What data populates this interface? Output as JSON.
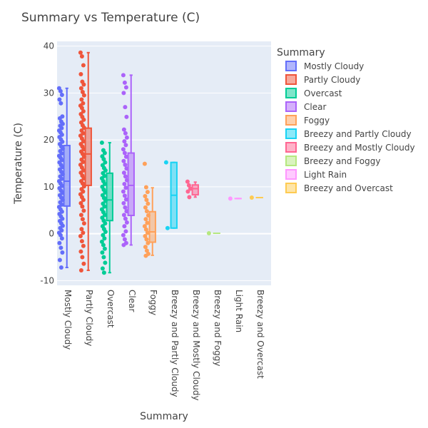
{
  "chart_data": {
    "type": "box",
    "title": "Summary vs Temperature (C)",
    "xlabel": "Summary",
    "ylabel": "Temperature (C)",
    "ylim": [
      -11,
      41
    ],
    "yticks": [
      -10,
      0,
      10,
      20,
      30,
      40
    ],
    "grid": true,
    "legend": {
      "title": "Summary",
      "position": "right"
    },
    "plot_bg": "#E5ECF6",
    "series": [
      {
        "name": "Mostly Cloudy",
        "color": "#636EFA",
        "min": -7.2,
        "q1": 5.9,
        "median": 11.2,
        "q3": 18.8,
        "max": 31.0,
        "points": [
          31.0,
          30.4,
          29.6,
          28.6,
          27.8,
          25.0,
          24.6,
          23.9,
          23.4,
          23.0,
          22.5,
          22.0,
          21.6,
          21.1,
          20.6,
          20.1,
          19.6,
          19.1,
          18.6,
          18.1,
          17.6,
          17.1,
          16.6,
          16.2,
          15.7,
          15.2,
          14.7,
          14.2,
          13.7,
          13.2,
          12.7,
          12.2,
          11.7,
          11.2,
          10.7,
          10.2,
          9.7,
          9.2,
          8.7,
          8.2,
          7.7,
          7.2,
          6.7,
          6.2,
          5.7,
          5.2,
          4.7,
          4.2,
          3.7,
          3.2,
          2.7,
          2.2,
          1.7,
          1.2,
          0.7,
          0.2,
          -0.3,
          -1.0,
          -2.0,
          -3.0,
          -4.0,
          -5.6,
          -7.2
        ]
      },
      {
        "name": "Partly Cloudy",
        "color": "#EF553B",
        "min": -7.8,
        "q1": 10.3,
        "median": 17.0,
        "q3": 22.5,
        "max": 38.6,
        "points": [
          38.6,
          37.8,
          35.9,
          34.0,
          32.4,
          31.8,
          31.0,
          30.2,
          29.5,
          28.6,
          27.8,
          27.3,
          26.8,
          26.1,
          25.5,
          24.9,
          24.3,
          23.7,
          23.1,
          22.6,
          22.0,
          21.4,
          20.9,
          20.3,
          19.7,
          19.1,
          18.6,
          18.0,
          17.5,
          17.0,
          16.4,
          15.8,
          15.3,
          14.7,
          14.1,
          13.5,
          13.0,
          12.4,
          11.8,
          11.2,
          10.7,
          10.1,
          9.5,
          9.0,
          8.4,
          7.8,
          7.2,
          6.5,
          5.8,
          4.9,
          4.0,
          3.1,
          2.2,
          1.0,
          0.2,
          -0.5,
          -1.6,
          -2.6,
          -3.8,
          -5.0,
          -6.4,
          -7.8
        ]
      },
      {
        "name": "Overcast",
        "color": "#00CC96",
        "min": -8.3,
        "q1": 2.8,
        "median": 7.2,
        "q3": 12.9,
        "max": 19.4,
        "points": [
          19.4,
          17.8,
          17.2,
          16.5,
          15.9,
          15.2,
          14.6,
          14.0,
          13.5,
          12.9,
          12.3,
          11.8,
          11.2,
          10.6,
          10.0,
          9.4,
          8.8,
          8.2,
          7.6,
          7.0,
          6.4,
          5.8,
          5.2,
          4.6,
          4.0,
          3.4,
          2.8,
          2.2,
          1.6,
          1.0,
          0.4,
          -0.3,
          -1.0,
          -1.7,
          -2.4,
          -3.2,
          -4.0,
          -5.0,
          -6.2,
          -7.4,
          -8.3
        ]
      },
      {
        "name": "Clear",
        "color": "#AB63FA",
        "min": -2.4,
        "q1": 3.9,
        "median": 10.3,
        "q3": 17.2,
        "max": 33.8,
        "points": [
          33.8,
          32.2,
          31.2,
          30.0,
          27.0,
          24.9,
          22.2,
          21.4,
          20.5,
          19.7,
          18.9,
          18.0,
          17.2,
          16.4,
          15.5,
          14.7,
          13.9,
          13.0,
          12.2,
          11.4,
          10.6,
          9.8,
          9.0,
          8.1,
          7.3,
          6.5,
          5.6,
          4.8,
          4.0,
          3.2,
          2.4,
          1.6,
          0.5,
          -0.3,
          -1.2,
          -2.0,
          -2.4
        ]
      },
      {
        "name": "Foggy",
        "color": "#FFA15A",
        "min": -4.6,
        "q1": -1.8,
        "median": 0.4,
        "q3": 4.7,
        "max": 9.8,
        "points": [
          14.9,
          9.9,
          8.9,
          8.0,
          7.2,
          6.4,
          5.6,
          4.8,
          3.9,
          3.1,
          2.3,
          1.6,
          0.9,
          0.2,
          -0.5,
          -1.2,
          -2.0,
          -2.8,
          -3.6,
          -4.3,
          -4.7
        ]
      },
      {
        "name": "Breezy and Partly Cloudy",
        "color": "#19D3F3",
        "min": 1.2,
        "q1": 1.2,
        "median": 8.2,
        "q3": 15.2,
        "max": 15.2,
        "points": [
          15.2,
          1.2
        ]
      },
      {
        "name": "Breezy and Mostly Cloudy",
        "color": "#FF6692",
        "min": 7.8,
        "q1": 8.3,
        "median": 9.6,
        "q3": 10.4,
        "max": 11.0,
        "points": [
          11.1,
          10.3,
          9.6,
          9.0,
          7.8
        ]
      },
      {
        "name": "Breezy and Foggy",
        "color": "#B6E880",
        "min": 0.1,
        "q1": 0.1,
        "median": 0.1,
        "q3": 0.1,
        "max": 0.1,
        "points": [
          0.1
        ]
      },
      {
        "name": "Light Rain",
        "color": "#FF97FF",
        "min": 7.5,
        "q1": 7.5,
        "median": 7.5,
        "q3": 7.5,
        "max": 7.5,
        "points": [
          7.5
        ]
      },
      {
        "name": "Breezy and Overcast",
        "color": "#FECB52",
        "min": 7.7,
        "q1": 7.7,
        "median": 7.7,
        "q3": 7.7,
        "max": 7.7,
        "points": [
          7.7
        ]
      }
    ]
  }
}
